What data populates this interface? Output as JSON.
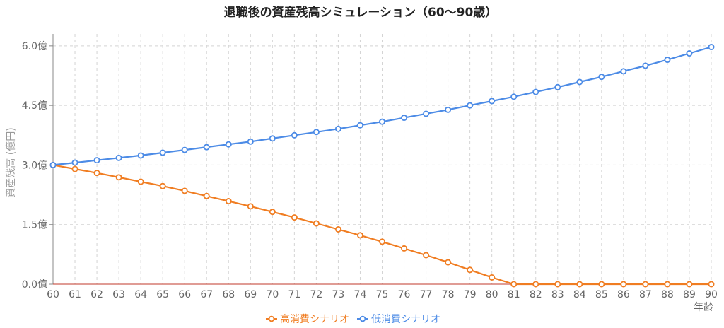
{
  "chart_data": {
    "type": "line",
    "title": "退職後の資産残高シミュレーション（60〜90歳）",
    "xlabel": "年齢",
    "ylabel": "資産残高 (億円)",
    "x": [
      60,
      61,
      62,
      63,
      64,
      65,
      66,
      67,
      68,
      69,
      70,
      71,
      72,
      73,
      74,
      75,
      76,
      77,
      78,
      79,
      80,
      81,
      82,
      83,
      84,
      85,
      86,
      87,
      88,
      89,
      90
    ],
    "xlim": [
      60,
      90
    ],
    "ylim": [
      0,
      6.3
    ],
    "yticks": [
      0,
      1.5,
      3.0,
      4.5,
      6.0
    ],
    "ytick_labels": [
      "0.0億",
      "1.5億",
      "3.0億",
      "4.5億",
      "6.0億"
    ],
    "grid": true,
    "legend_position": "bottom-center",
    "series": [
      {
        "name": "高消費シナリオ",
        "color": "#f07d22",
        "values": [
          3.0,
          2.9,
          2.8,
          2.69,
          2.58,
          2.47,
          2.35,
          2.22,
          2.09,
          1.96,
          1.82,
          1.68,
          1.53,
          1.38,
          1.23,
          1.07,
          0.9,
          0.73,
          0.55,
          0.36,
          0.17,
          0,
          0,
          0,
          0,
          0,
          0,
          0,
          0,
          0,
          0
        ]
      },
      {
        "name": "低消費シナリオ",
        "color": "#4c8be6",
        "values": [
          3.0,
          3.06,
          3.12,
          3.18,
          3.24,
          3.31,
          3.38,
          3.45,
          3.52,
          3.59,
          3.67,
          3.75,
          3.83,
          3.91,
          4.0,
          4.09,
          4.19,
          4.29,
          4.39,
          4.5,
          4.61,
          4.72,
          4.84,
          4.96,
          5.09,
          5.22,
          5.36,
          5.5,
          5.65,
          5.81,
          5.97
        ]
      }
    ]
  }
}
